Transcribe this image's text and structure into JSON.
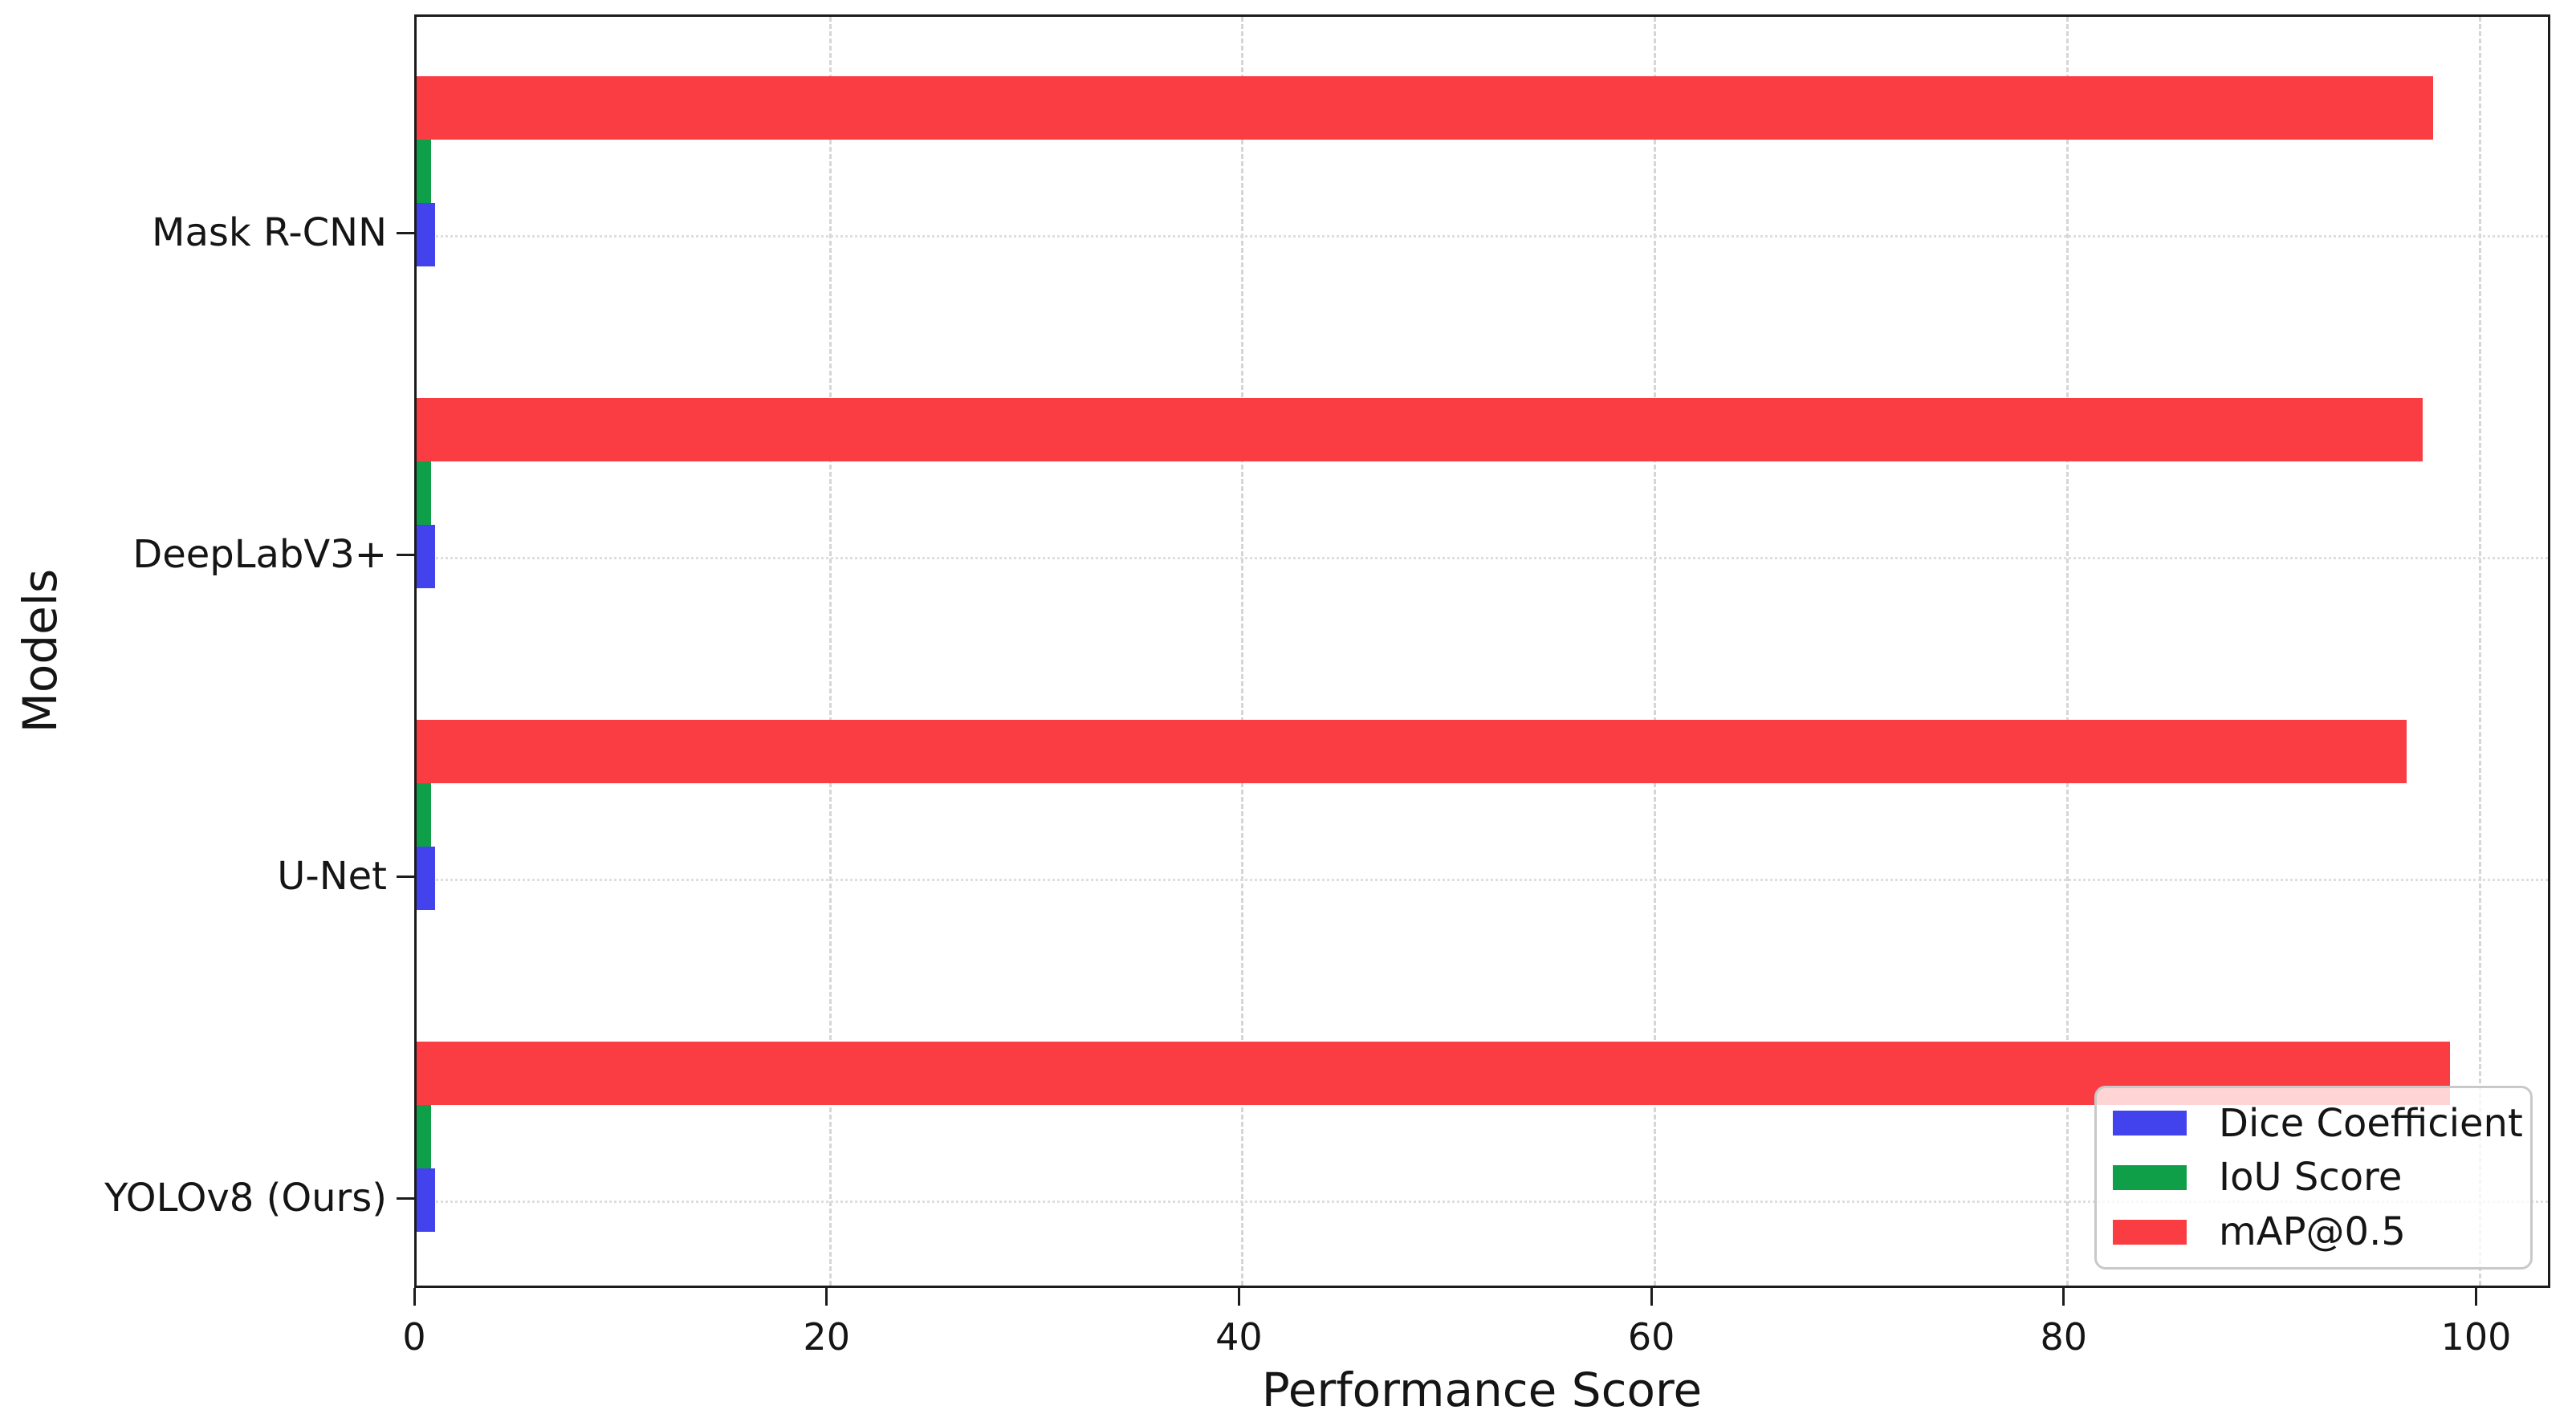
{
  "figure": {
    "background": "#ffffff",
    "spine_color": "#1c1c1c",
    "grid_vertical_color": "#d6d6d6",
    "grid_horizontal_color": "#dedede",
    "legend_border_color": "#c9c9c9"
  },
  "chart_data": {
    "type": "bar",
    "orientation": "horizontal",
    "title": "",
    "xlabel": "Performance Score",
    "ylabel": "Models",
    "categories": [
      "Mask R-CNN",
      "DeepLabV3+",
      "U-Net",
      "YOLOv8 (Ours)"
    ],
    "series": [
      {
        "name": "Dice Coefficient",
        "color": "#4343ee",
        "values": [
          0.9,
          0.9,
          0.9,
          0.9
        ]
      },
      {
        "name": "IoU Score",
        "color": "#0f9f48",
        "values": [
          0.7,
          0.7,
          0.7,
          0.7
        ]
      },
      {
        "name": "mAP@0.5",
        "color": "#fa3d43",
        "values": [
          97.8,
          97.3,
          96.5,
          98.6
        ]
      }
    ],
    "xlim": [
      0,
      103.6
    ],
    "xticks": [
      0,
      20,
      40,
      60,
      80,
      100
    ],
    "grid": true,
    "legend_position": "lower right"
  }
}
